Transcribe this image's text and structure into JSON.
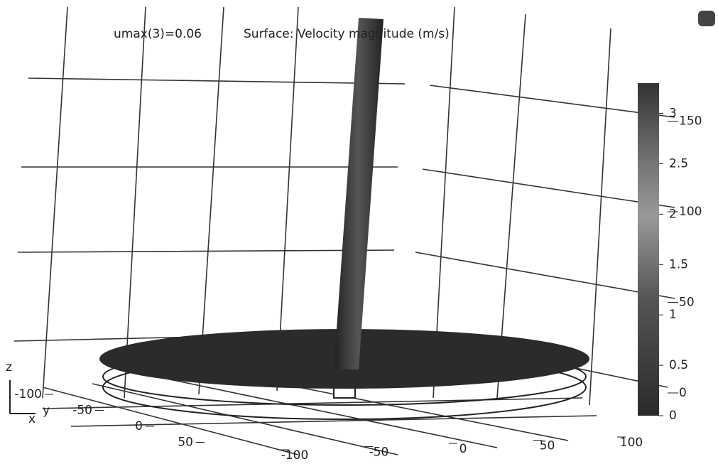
{
  "chart_data": {
    "type": "surface3d",
    "annotation": "umax(3)=0.06",
    "title": "Surface: Velocity magnitude (m/s)",
    "colorbar": {
      "clim": [
        0,
        3.3
      ],
      "ticks": [
        0,
        0.5,
        1,
        1.5,
        2,
        2.5,
        3
      ]
    },
    "xlabel": "x",
    "ylabel": "y",
    "zlabel": "z",
    "xticks": [
      -100,
      -50,
      0,
      50,
      100
    ],
    "yticks": [
      -100,
      -50,
      0,
      50
    ],
    "zticks": [
      0,
      50,
      100,
      150
    ]
  }
}
